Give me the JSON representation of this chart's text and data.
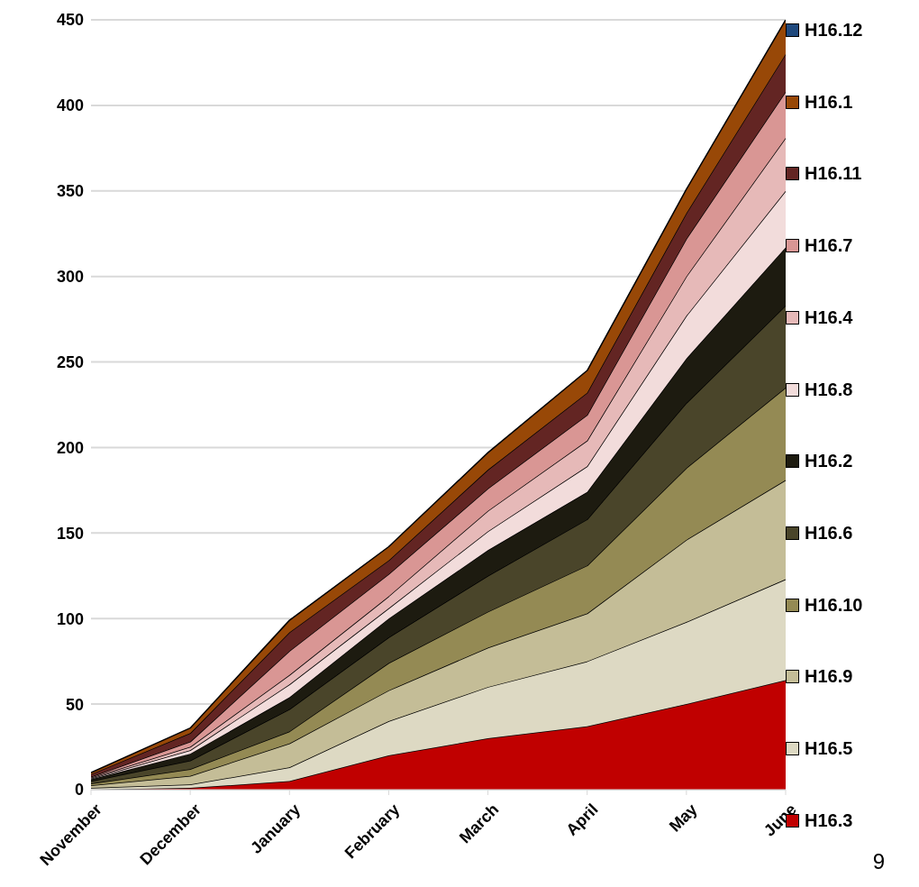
{
  "chart_data": {
    "type": "area",
    "stacked": true,
    "categories": [
      "November",
      "December",
      "January",
      "February",
      "March",
      "April",
      "May",
      "June"
    ],
    "series": [
      {
        "name": "H16.3",
        "color": "#c00000",
        "values": [
          0,
          1,
          5,
          20,
          30,
          37,
          50,
          64
        ]
      },
      {
        "name": "H16.5",
        "color": "#ddd9c3",
        "values": [
          1,
          2,
          8,
          20,
          30,
          38,
          48,
          59
        ]
      },
      {
        "name": "H16.9",
        "color": "#c4bd97",
        "values": [
          1.5,
          5,
          14,
          18,
          23,
          28,
          48,
          58
        ]
      },
      {
        "name": "H16.10",
        "color": "#948a54",
        "values": [
          1,
          4,
          7,
          16,
          21,
          28,
          42,
          54
        ]
      },
      {
        "name": "H16.6",
        "color": "#4a452a",
        "values": [
          1.5,
          5,
          13,
          15,
          21,
          27,
          38,
          48
        ]
      },
      {
        "name": "H16.2",
        "color": "#1d1b10",
        "values": [
          1,
          4,
          7,
          11,
          15,
          16,
          26,
          34
        ]
      },
      {
        "name": "H16.8",
        "color": "#f2dcdb",
        "values": [
          0.5,
          2,
          7.5,
          6,
          11,
          15,
          25,
          33
        ]
      },
      {
        "name": "H16.4",
        "color": "#e6b9b8",
        "values": [
          0.5,
          2,
          5.5,
          7,
          12,
          15,
          23,
          31
        ]
      },
      {
        "name": "H16.7",
        "color": "#d99694",
        "values": [
          0.5,
          3,
          14,
          13,
          13,
          15,
          22,
          27
        ]
      },
      {
        "name": "H16.11",
        "color": "#632523",
        "values": [
          1.5,
          5,
          11,
          8,
          11,
          13,
          15,
          22
        ]
      },
      {
        "name": "H16.1",
        "color": "#984807",
        "values": [
          1,
          3,
          7,
          8,
          10,
          13,
          14,
          20
        ]
      },
      {
        "name": "H16.12",
        "color": "#1f497d",
        "values": [
          null,
          null,
          null,
          null,
          null,
          null,
          null,
          null
        ]
      }
    ],
    "ylim": [
      0,
      450
    ],
    "yticks": [
      0,
      50,
      100,
      150,
      200,
      250,
      300,
      350,
      400,
      450
    ],
    "grid": "y",
    "legend": "right",
    "annotations": [
      "9"
    ]
  }
}
